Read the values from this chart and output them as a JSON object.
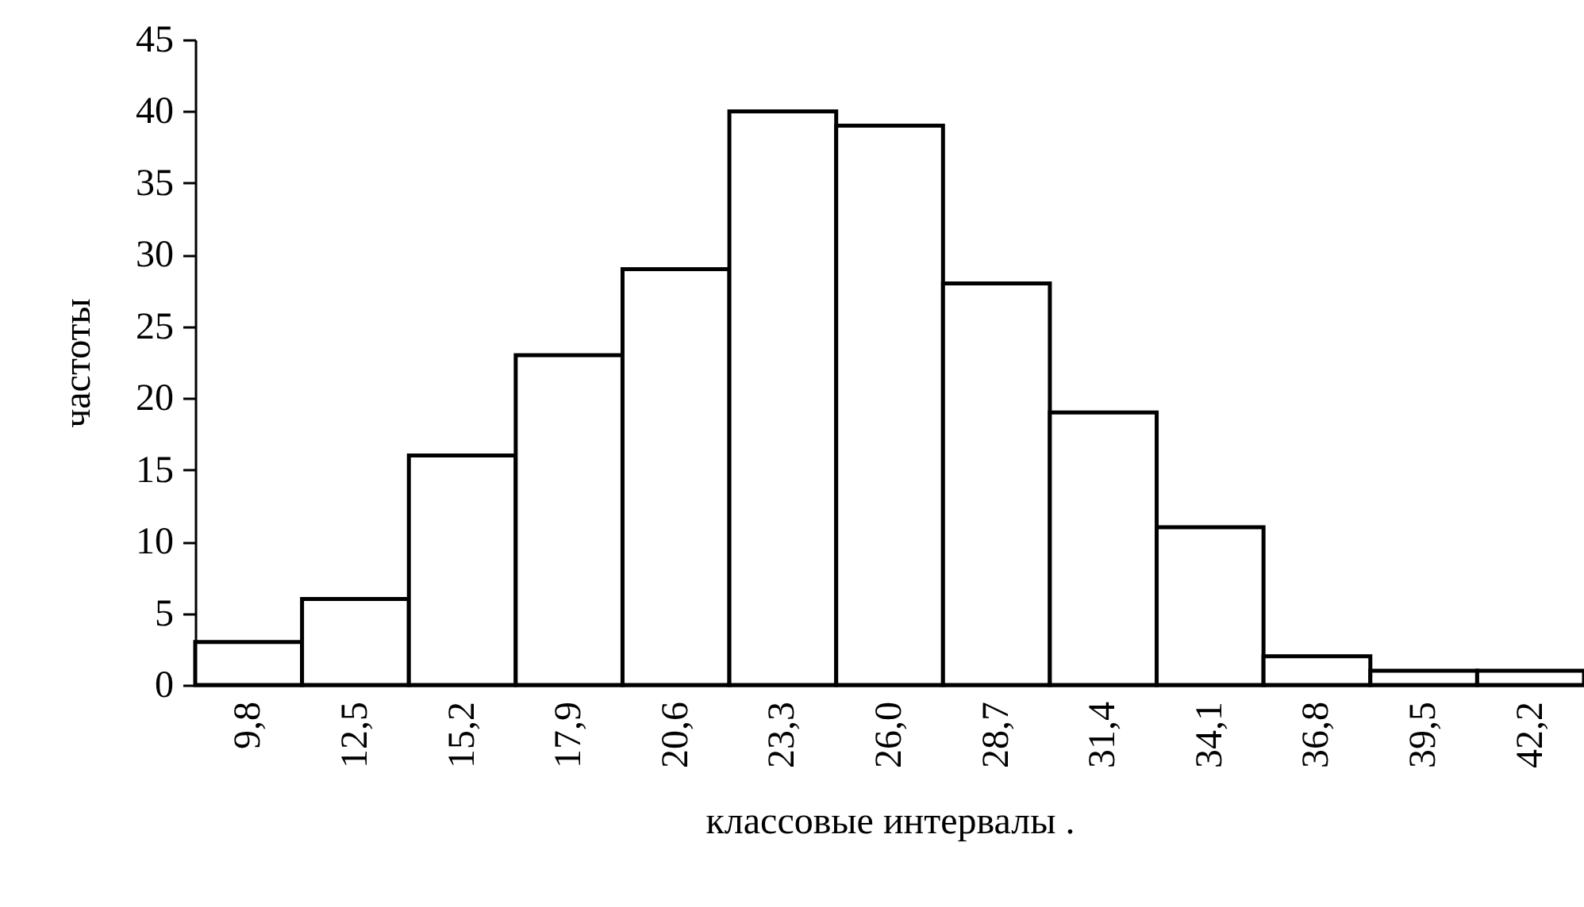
{
  "chart_data": {
    "type": "bar",
    "xlabel": "классовые интервалы       .",
    "ylabel": "частоты",
    "categories": [
      "9,8",
      "12,5",
      "15,2",
      "17,9",
      "20,6",
      "23,3",
      "26,0",
      "28,7",
      "31,4",
      "34,1",
      "36,8",
      "39,5",
      "42,2"
    ],
    "series": [
      {
        "color": "#ffffff",
        "values": [
          3,
          6,
          16,
          23,
          29,
          40,
          39,
          28,
          19,
          11,
          2,
          1,
          1
        ]
      }
    ],
    "ylim": [
      0,
      45
    ],
    "yticks": [
      0,
      5,
      10,
      15,
      20,
      25,
      30,
      35,
      40,
      45
    ],
    "grid": false
  }
}
